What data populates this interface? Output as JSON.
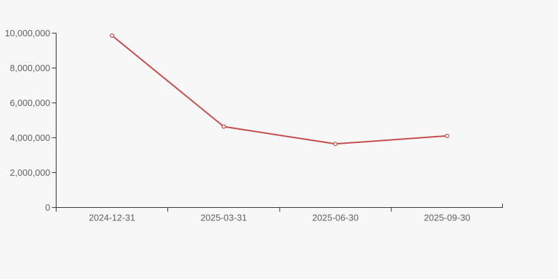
{
  "chart": {
    "background": "#f7f7f7"
  },
  "chart_data": {
    "type": "line",
    "title": "",
    "xlabel": "",
    "ylabel": "",
    "categories": [
      "2024-12-31",
      "2025-03-31",
      "2025-06-30",
      "2025-09-30"
    ],
    "series": [
      {
        "name": "value",
        "values": [
          9860000,
          4640000,
          3650000,
          4110000
        ]
      }
    ],
    "ylim": [
      0,
      10000000
    ],
    "y_tick_interval": 2000000,
    "y_tick_labels": [
      "0",
      "2,000,000",
      "4,000,000",
      "6,000,000",
      "8,000,000",
      "10,000,000"
    ],
    "grid": false,
    "legend": false,
    "marker": "open-circle",
    "colors": {
      "line": "#c44a47",
      "marker_fill": "#ffffff",
      "axis": "#333333",
      "tick_label": "#606060",
      "background": "#f7f7f7"
    }
  }
}
